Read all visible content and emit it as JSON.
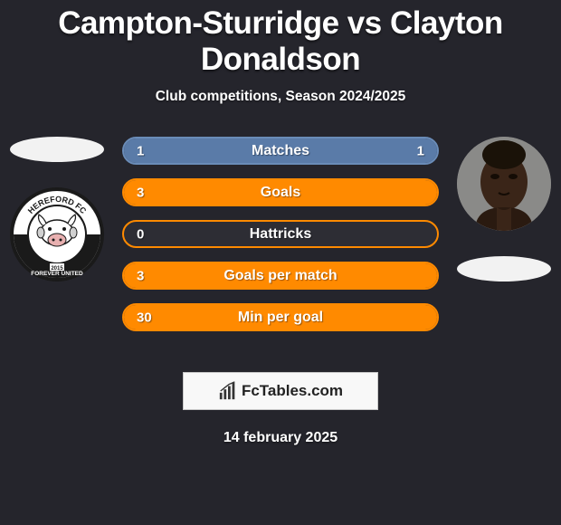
{
  "title": "Campton-Sturridge vs Clayton Donaldson",
  "subtitle": "Club competitions, Season 2024/2025",
  "date": "14 february 2025",
  "watermark": "FcTables.com",
  "colors": {
    "background": "#25252c",
    "bar_border": "#ff8a00",
    "bar_fill_full": "#ff8a00",
    "bar_fill_empty": "#2d2d34",
    "matches_fill": "#5a7ba8",
    "matches_border": "#6a8cb8",
    "oval": "#f2f2f2",
    "text": "#ffffff"
  },
  "bars": [
    {
      "label": "Matches",
      "left": "1",
      "right": "1",
      "left_pct": 50,
      "right_pct": 50,
      "style": "matches"
    },
    {
      "label": "Goals",
      "left": "3",
      "right": "",
      "left_pct": 100,
      "right_pct": 0,
      "style": "orange"
    },
    {
      "label": "Hattricks",
      "left": "0",
      "right": "",
      "left_pct": 0,
      "right_pct": 0,
      "style": "orange"
    },
    {
      "label": "Goals per match",
      "left": "3",
      "right": "",
      "left_pct": 100,
      "right_pct": 0,
      "style": "orange"
    },
    {
      "label": "Min per goal",
      "left": "30",
      "right": "",
      "left_pct": 100,
      "right_pct": 0,
      "style": "orange"
    }
  ],
  "left_player": {
    "oval_first": true,
    "crest_label_top": "HEREFORD FC",
    "crest_label_bottom": "FOREVER UNITED",
    "crest_year": "2015"
  },
  "right_player": {
    "oval_first": false
  }
}
